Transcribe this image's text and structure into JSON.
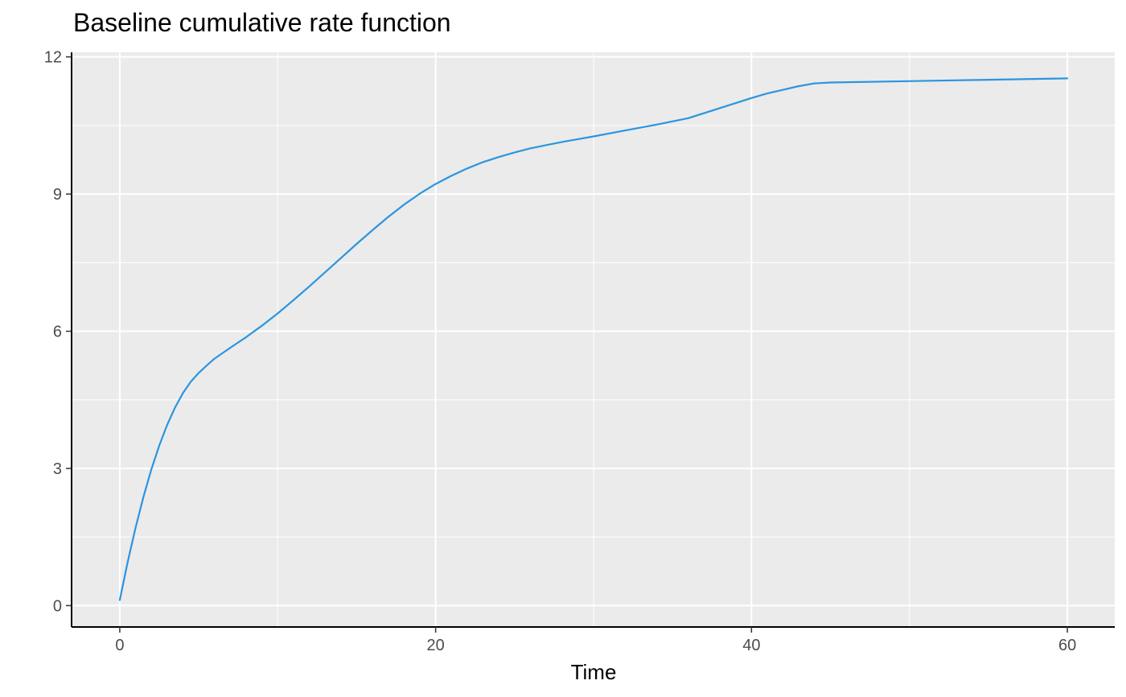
{
  "chart_data": {
    "type": "line",
    "title": "Baseline cumulative rate function",
    "xlabel": "Time",
    "ylabel": "",
    "xlim": [
      -3,
      63
    ],
    "ylim": [
      -0.45,
      12.1
    ],
    "x_ticks": [
      0,
      20,
      40,
      60
    ],
    "y_ticks": [
      0,
      3,
      6,
      9,
      12
    ],
    "x_tick_labels": [
      "0",
      "20",
      "40",
      "60"
    ],
    "y_tick_labels": [
      "0",
      "3",
      "6",
      "9",
      "12"
    ],
    "x_minor_ticks": [
      10,
      30,
      50
    ],
    "y_minor_ticks": [
      1.5,
      4.5,
      7.5,
      10.5
    ],
    "grid": true,
    "legend": "none",
    "panel_background": "#ebebeb",
    "grid_color": "#ffffff",
    "series": [
      {
        "color": "#2b95e0",
        "x": [
          0,
          0.5,
          1,
          1.5,
          2,
          2.5,
          3,
          3.5,
          4,
          4.5,
          5,
          5.5,
          6,
          7,
          8,
          9,
          10,
          11,
          12,
          13,
          14,
          15,
          16,
          17,
          18,
          19,
          20,
          21,
          22,
          23,
          24,
          25,
          26,
          27,
          28,
          29,
          30,
          32,
          34,
          36,
          38,
          40,
          41,
          42,
          43,
          44,
          45,
          50,
          55,
          60
        ],
        "y": [
          0.12,
          0.95,
          1.7,
          2.38,
          2.98,
          3.5,
          3.95,
          4.33,
          4.65,
          4.9,
          5.09,
          5.25,
          5.4,
          5.64,
          5.87,
          6.12,
          6.39,
          6.68,
          6.98,
          7.29,
          7.6,
          7.91,
          8.21,
          8.5,
          8.77,
          9.01,
          9.22,
          9.4,
          9.56,
          9.7,
          9.81,
          9.91,
          10.0,
          10.07,
          10.14,
          10.2,
          10.26,
          10.39,
          10.52,
          10.66,
          10.88,
          11.1,
          11.2,
          11.28,
          11.36,
          11.42,
          11.44,
          11.47,
          11.5,
          11.53
        ]
      }
    ]
  }
}
